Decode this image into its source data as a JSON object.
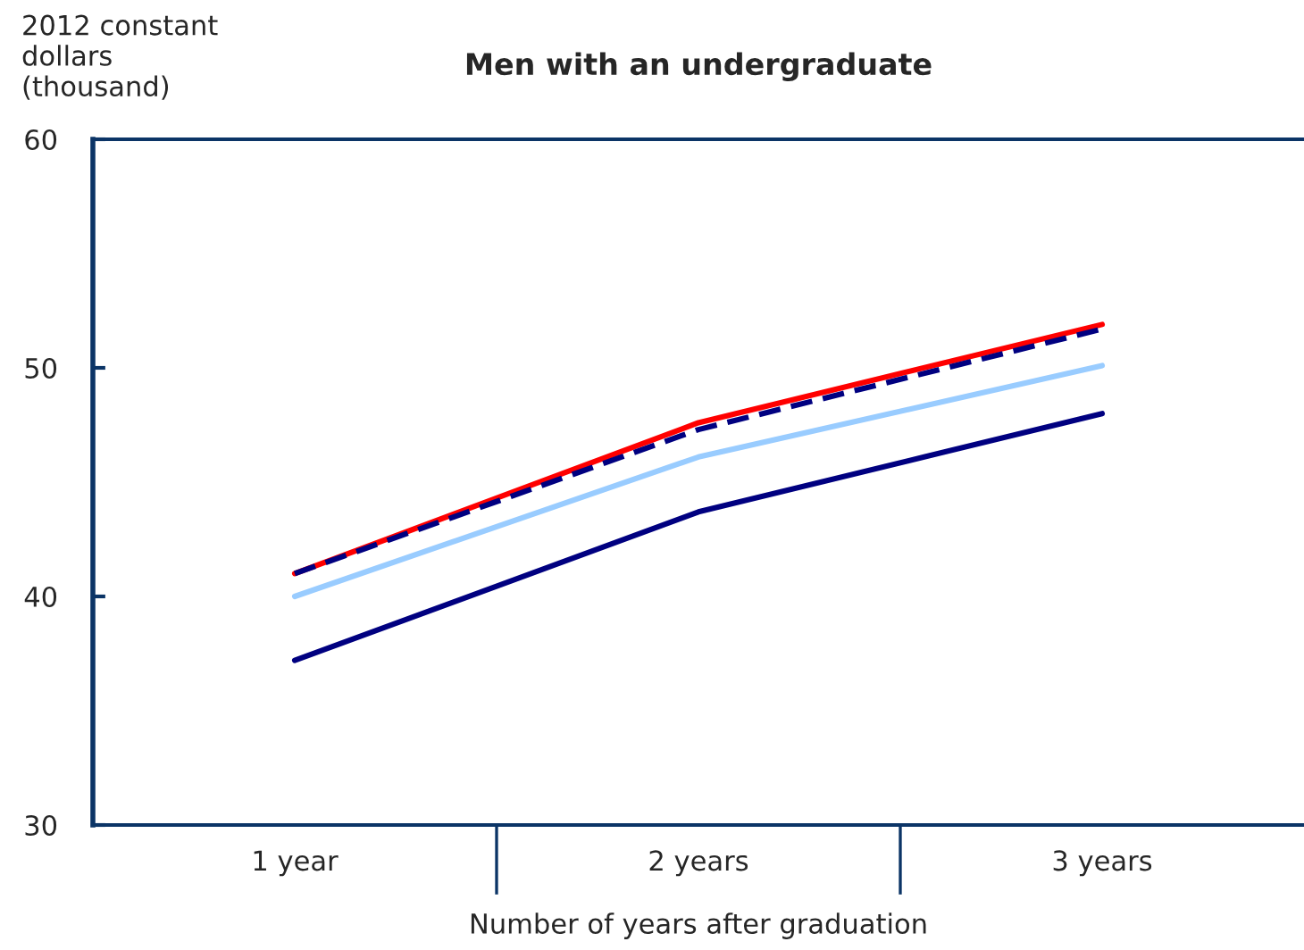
{
  "chart_data": {
    "type": "line",
    "title": "Men with an undergraduate",
    "ylabel": "2012 constant\ndollars\n(thousand)",
    "xlabel": "Number of years after graduation",
    "categories": [
      "1 year",
      "2 years",
      "3 years"
    ],
    "series": [
      {
        "color": "#99ccff",
        "values": [
          40.0,
          46.1,
          50.1
        ],
        "line_style": "solid"
      },
      {
        "color": "#000080",
        "values": [
          37.2,
          43.7,
          48.0
        ],
        "line_style": "solid"
      },
      {
        "color": "#ff0000",
        "values": [
          41.0,
          47.6,
          51.9
        ],
        "line_style": "solid"
      },
      {
        "color": "#000080",
        "values": [
          41.0,
          47.3,
          51.7
        ],
        "line_style": "dashed"
      }
    ],
    "ylim": [
      30,
      60
    ],
    "yticks": [
      30,
      40,
      50,
      60
    ],
    "grid": false,
    "legend": false,
    "marker": "none"
  }
}
